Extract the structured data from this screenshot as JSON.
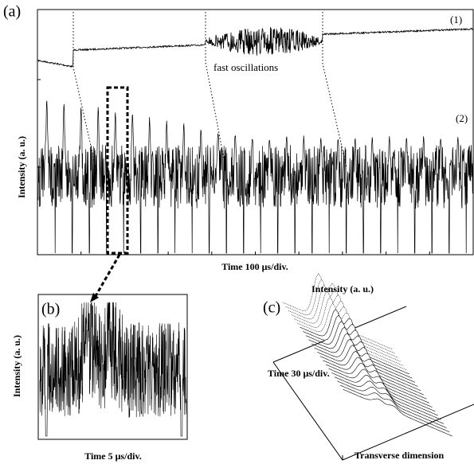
{
  "panel_a": {
    "tag": "(a)",
    "trace_1": "(1)",
    "trace_2": "(2)",
    "annotation": "fast oscillations",
    "y_label": "Intensity (a. u.)",
    "x_label": "Time 100 μs/div."
  },
  "panel_b": {
    "tag": "(b)",
    "y_label": "Intensity (a. u.)",
    "x_label": "Time 5 μs/div."
  },
  "panel_c": {
    "tag": "(c)",
    "z_label": "Intensity (a. u.)",
    "y_label": "Time 30 μs/div.",
    "x_label": "Transverse dimension"
  }
}
